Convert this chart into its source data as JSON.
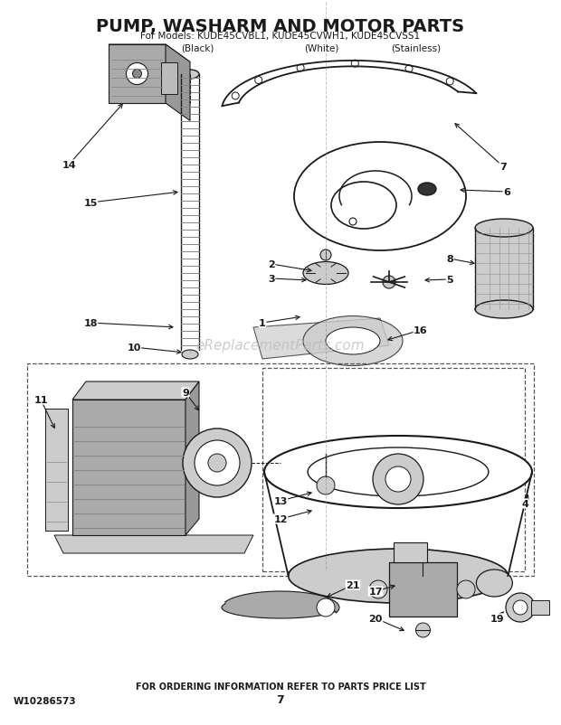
{
  "title_line1": "PUMP, WASHARM AND MOTOR PARTS",
  "title_line2": "For Models: KUDE45CVBL1, KUDE45CVWH1, KUDE45CVSS1",
  "title_line3_black": "(Black)",
  "title_line3_white": "(White)",
  "title_line3_ss": "(Stainless)",
  "footer_left": "W10286573",
  "footer_center": "7",
  "footer_bottom": "FOR ORDERING INFORMATION REFER TO PARTS PRICE LIST",
  "watermark": "eReplacementParts.com",
  "bg_color": "#ffffff",
  "dc": "#1a1a1a",
  "gray1": "#aaaaaa",
  "gray2": "#cccccc",
  "gray3": "#888888"
}
